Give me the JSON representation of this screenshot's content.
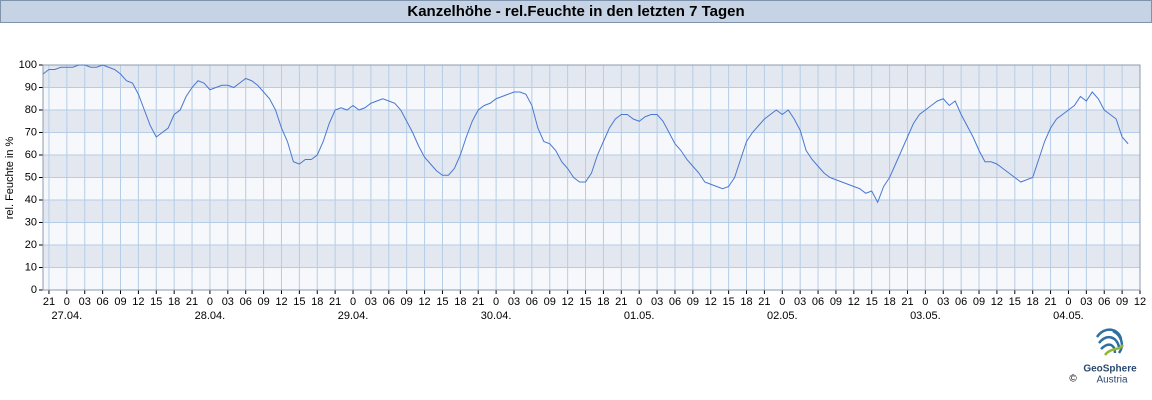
{
  "chart_data": {
    "type": "line",
    "title": "Kanzelhöhe - rel.Feuchte in den letzten 7 Tagen",
    "y_label": "rel. Feuchte in %",
    "xlim": [
      -4,
      180
    ],
    "ylim": [
      0,
      100
    ],
    "yticks": [
      0,
      10,
      20,
      30,
      40,
      50,
      60,
      70,
      80,
      90,
      100
    ],
    "xticks": [
      {
        "value": -3,
        "label": "21"
      },
      0,
      {
        "value": 3,
        "label": "03"
      },
      {
        "value": 6,
        "label": "06"
      },
      {
        "value": 9,
        "label": "09"
      },
      12,
      15,
      18,
      21,
      {
        "value": 24,
        "label": "0"
      },
      {
        "value": 27,
        "label": "03"
      },
      {
        "value": 30,
        "label": "06"
      },
      {
        "value": 33,
        "label": "09"
      },
      {
        "value": 36,
        "label": "12"
      },
      {
        "value": 39,
        "label": "15"
      },
      {
        "value": 42,
        "label": "18"
      },
      {
        "value": 45,
        "label": "21"
      },
      {
        "value": 48,
        "label": "0"
      },
      {
        "value": 51,
        "label": "03"
      },
      {
        "value": 54,
        "label": "06"
      },
      {
        "value": 57,
        "label": "09"
      },
      {
        "value": 60,
        "label": "12"
      },
      {
        "value": 63,
        "label": "15"
      },
      {
        "value": 66,
        "label": "18"
      },
      {
        "value": 69,
        "label": "21"
      },
      {
        "value": 72,
        "label": "0"
      },
      {
        "value": 75,
        "label": "03"
      },
      {
        "value": 78,
        "label": "06"
      },
      {
        "value": 81,
        "label": "09"
      },
      {
        "value": 84,
        "label": "12"
      },
      {
        "value": 87,
        "label": "15"
      },
      {
        "value": 90,
        "label": "18"
      },
      {
        "value": 93,
        "label": "21"
      },
      {
        "value": 96,
        "label": "0"
      },
      {
        "value": 99,
        "label": "03"
      },
      {
        "value": 102,
        "label": "06"
      },
      {
        "value": 105,
        "label": "09"
      },
      {
        "value": 108,
        "label": "12"
      },
      {
        "value": 111,
        "label": "15"
      },
      {
        "value": 114,
        "label": "18"
      },
      {
        "value": 117,
        "label": "21"
      },
      {
        "value": 120,
        "label": "0"
      },
      {
        "value": 123,
        "label": "03"
      },
      {
        "value": 126,
        "label": "06"
      },
      {
        "value": 129,
        "label": "09"
      },
      {
        "value": 132,
        "label": "12"
      },
      {
        "value": 135,
        "label": "15"
      },
      {
        "value": 138,
        "label": "18"
      },
      {
        "value": 141,
        "label": "21"
      },
      {
        "value": 144,
        "label": "0"
      },
      {
        "value": 147,
        "label": "03"
      },
      {
        "value": 150,
        "label": "06"
      },
      {
        "value": 153,
        "label": "09"
      },
      {
        "value": 156,
        "label": "12"
      },
      {
        "value": 159,
        "label": "15"
      },
      {
        "value": 162,
        "label": "18"
      },
      {
        "value": 165,
        "label": "21"
      },
      {
        "value": 168,
        "label": "0"
      },
      {
        "value": 171,
        "label": "03"
      },
      {
        "value": 174,
        "label": "06"
      },
      {
        "value": 177,
        "label": "09"
      },
      {
        "value": 180,
        "label": "12"
      }
    ],
    "date_ticks": [
      {
        "value": 0,
        "label": "27.04."
      },
      {
        "value": 24,
        "label": "28.04."
      },
      {
        "value": 48,
        "label": "29.04."
      },
      {
        "value": 72,
        "label": "30.04."
      },
      {
        "value": 96,
        "label": "01.05."
      },
      {
        "value": 120,
        "label": "02.05."
      },
      {
        "value": 144,
        "label": "03.05."
      },
      {
        "value": 168,
        "label": "04.05."
      }
    ],
    "grid": true,
    "color": "#4a78d0",
    "x": [
      -4,
      -3,
      -2,
      -1,
      0,
      1,
      2,
      3,
      4,
      5,
      6,
      7,
      8,
      9,
      10,
      11,
      12,
      13,
      14,
      15,
      16,
      17,
      18,
      19,
      20,
      21,
      22,
      23,
      24,
      25,
      26,
      27,
      28,
      29,
      30,
      31,
      32,
      33,
      34,
      35,
      36,
      37,
      38,
      39,
      40,
      41,
      42,
      43,
      44,
      45,
      46,
      47,
      48,
      49,
      50,
      51,
      52,
      53,
      54,
      55,
      56,
      57,
      58,
      59,
      60,
      61,
      62,
      63,
      64,
      65,
      66,
      67,
      68,
      69,
      70,
      71,
      72,
      73,
      74,
      75,
      76,
      77,
      78,
      79,
      80,
      81,
      82,
      83,
      84,
      85,
      86,
      87,
      88,
      89,
      90,
      91,
      92,
      93,
      94,
      95,
      96,
      97,
      98,
      99,
      100,
      101,
      102,
      103,
      104,
      105,
      106,
      107,
      108,
      109,
      110,
      111,
      112,
      113,
      114,
      115,
      116,
      117,
      118,
      119,
      120,
      121,
      122,
      123,
      124,
      125,
      126,
      127,
      128,
      129,
      130,
      131,
      132,
      133,
      134,
      135,
      136,
      137,
      138,
      139,
      140,
      141,
      142,
      143,
      144,
      145,
      146,
      147,
      148,
      149,
      150,
      151,
      152,
      153,
      154,
      155,
      156,
      157,
      158,
      159,
      160,
      161,
      162,
      163,
      164,
      165,
      166,
      167,
      168,
      169,
      170,
      171,
      172,
      173,
      174,
      175,
      176,
      177,
      178
    ],
    "values": [
      96,
      98,
      98,
      99,
      99,
      99,
      100,
      100,
      99,
      99,
      100,
      99,
      98,
      96,
      93,
      92,
      87,
      80,
      73,
      68,
      70,
      72,
      78,
      80,
      86,
      90,
      93,
      92,
      89,
      90,
      91,
      91,
      90,
      92,
      94,
      93,
      91,
      88,
      85,
      80,
      72,
      66,
      57,
      56,
      58,
      58,
      60,
      66,
      74,
      80,
      81,
      80,
      82,
      80,
      81,
      83,
      84,
      85,
      84,
      83,
      80,
      75,
      70,
      64,
      59,
      56,
      53,
      51,
      51,
      54,
      60,
      68,
      75,
      80,
      82,
      83,
      85,
      86,
      87,
      88,
      88,
      87,
      82,
      72,
      66,
      65,
      62,
      57,
      54,
      50,
      48,
      48,
      52,
      60,
      66,
      72,
      76,
      78,
      78,
      76,
      75,
      77,
      78,
      78,
      75,
      70,
      65,
      62,
      58,
      55,
      52,
      48,
      47,
      46,
      45,
      46,
      50,
      58,
      66,
      70,
      73,
      76,
      78,
      80,
      78,
      80,
      76,
      71,
      62,
      58,
      55,
      52,
      50,
      49,
      48,
      47,
      46,
      45,
      43,
      44,
      39,
      46,
      50,
      56,
      62,
      68,
      74,
      78,
      80,
      82,
      84,
      85,
      82,
      84,
      78,
      73,
      68,
      62,
      57,
      57,
      56,
      54,
      52,
      50,
      48,
      49,
      50,
      58,
      66,
      72,
      76,
      78,
      80,
      82,
      86,
      84,
      88,
      85,
      80,
      78,
      76,
      68,
      65
    ]
  },
  "logo": {
    "name": "GeoSphere",
    "sub": "Austria",
    "copyright": "©"
  }
}
